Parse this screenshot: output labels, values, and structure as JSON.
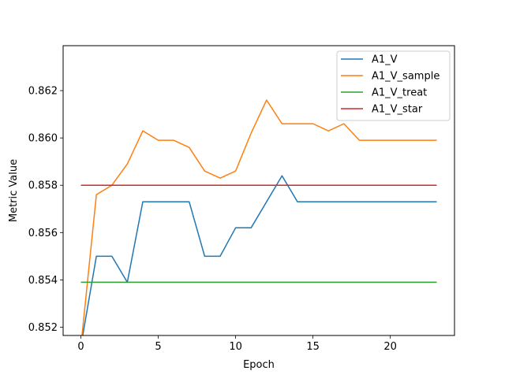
{
  "chart_data": {
    "type": "line",
    "title": "",
    "xlabel": "Epoch",
    "ylabel": "Metric Value",
    "xlim": [
      -1.15,
      24.15
    ],
    "ylim": [
      0.85165,
      0.8639
    ],
    "x_ticks": [
      0,
      5,
      10,
      15,
      20
    ],
    "y_ticks": [
      0.852,
      0.854,
      0.856,
      0.858,
      0.86,
      0.862
    ],
    "y_tick_labels": [
      "0.852",
      "0.854",
      "0.856",
      "0.858",
      "0.860",
      "0.862"
    ],
    "grid": false,
    "legend_position": "top-right",
    "x": [
      0,
      1,
      2,
      3,
      4,
      5,
      6,
      7,
      8,
      9,
      10,
      11,
      12,
      13,
      14,
      15,
      16,
      17,
      18,
      19,
      20,
      21,
      22,
      23
    ],
    "series": [
      {
        "name": "A1_V",
        "color": "#1f77b4",
        "values": [
          0.8512,
          0.855,
          0.855,
          0.8539,
          0.8573,
          0.8573,
          0.8573,
          0.8573,
          0.855,
          0.855,
          0.8562,
          0.8562,
          0.8573,
          0.8584,
          0.8573,
          0.8573,
          0.8573,
          0.8573,
          0.8573,
          0.8573,
          0.8573,
          0.8573,
          0.8573,
          0.8573
        ]
      },
      {
        "name": "A1_V_sample",
        "color": "#ff7f0e",
        "values": [
          0.8512,
          0.8576,
          0.858,
          0.8589,
          0.8603,
          0.8599,
          0.8599,
          0.8596,
          0.8586,
          0.8583,
          0.8586,
          0.8602,
          0.8616,
          0.8606,
          0.8606,
          0.8606,
          0.8603,
          0.8606,
          0.8599,
          0.8599,
          0.8599,
          0.8599,
          0.8599,
          0.8599
        ]
      },
      {
        "name": "A1_V_treat",
        "color": "#2ca02c",
        "values": [
          0.8539,
          0.8539,
          0.8539,
          0.8539,
          0.8539,
          0.8539,
          0.8539,
          0.8539,
          0.8539,
          0.8539,
          0.8539,
          0.8539,
          0.8539,
          0.8539,
          0.8539,
          0.8539,
          0.8539,
          0.8539,
          0.8539,
          0.8539,
          0.8539,
          0.8539,
          0.8539,
          0.8539
        ]
      },
      {
        "name": "A1_V_star",
        "color": "#d62728",
        "values": [
          0.858,
          0.858,
          0.858,
          0.858,
          0.858,
          0.858,
          0.858,
          0.858,
          0.858,
          0.858,
          0.858,
          0.858,
          0.858,
          0.858,
          0.858,
          0.858,
          0.858,
          0.858,
          0.858,
          0.858,
          0.858,
          0.858,
          0.858,
          0.858
        ]
      }
    ]
  }
}
